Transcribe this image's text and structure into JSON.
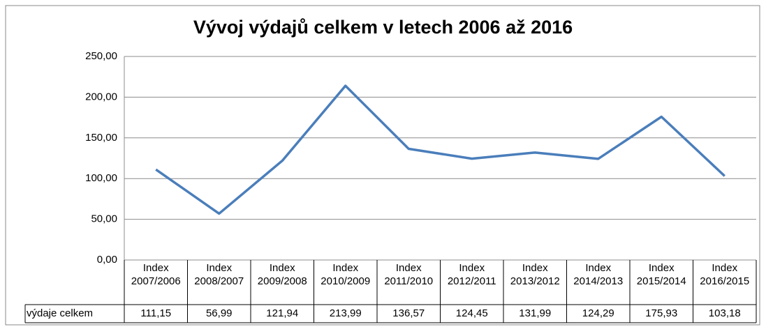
{
  "chart_data": {
    "type": "line",
    "title": "Vývoj výdajů celkem v letech 2006 až 2016",
    "categories": [
      "Index 2007/2006",
      "Index 2008/2007",
      "Index 2009/2008",
      "Index 2010/2009",
      "Index 2011/2010",
      "Index 2012/2011",
      "Index 2013/2012",
      "Index 2014/2013",
      "Index 2015/2014",
      "Index 2016/2015"
    ],
    "series": [
      {
        "name": "výdaje celkem",
        "color": "#4a7ebb",
        "values": [
          111.15,
          56.99,
          121.94,
          213.99,
          136.57,
          124.45,
          131.99,
          124.29,
          175.93,
          103.18
        ],
        "value_labels": [
          "111,15",
          "56,99",
          "121,94",
          "213,99",
          "136,57",
          "124,45",
          "131,99",
          "124,29",
          "175,93",
          "103,18"
        ]
      }
    ],
    "ylim": [
      0,
      250
    ],
    "yticks": [
      {
        "value": 0,
        "label": "0,00"
      },
      {
        "value": 50,
        "label": "50,00"
      },
      {
        "value": 100,
        "label": "100,00"
      },
      {
        "value": 150,
        "label": "150,00"
      },
      {
        "value": 200,
        "label": "200,00"
      },
      {
        "value": 250,
        "label": "250,00"
      }
    ],
    "grid": true
  }
}
